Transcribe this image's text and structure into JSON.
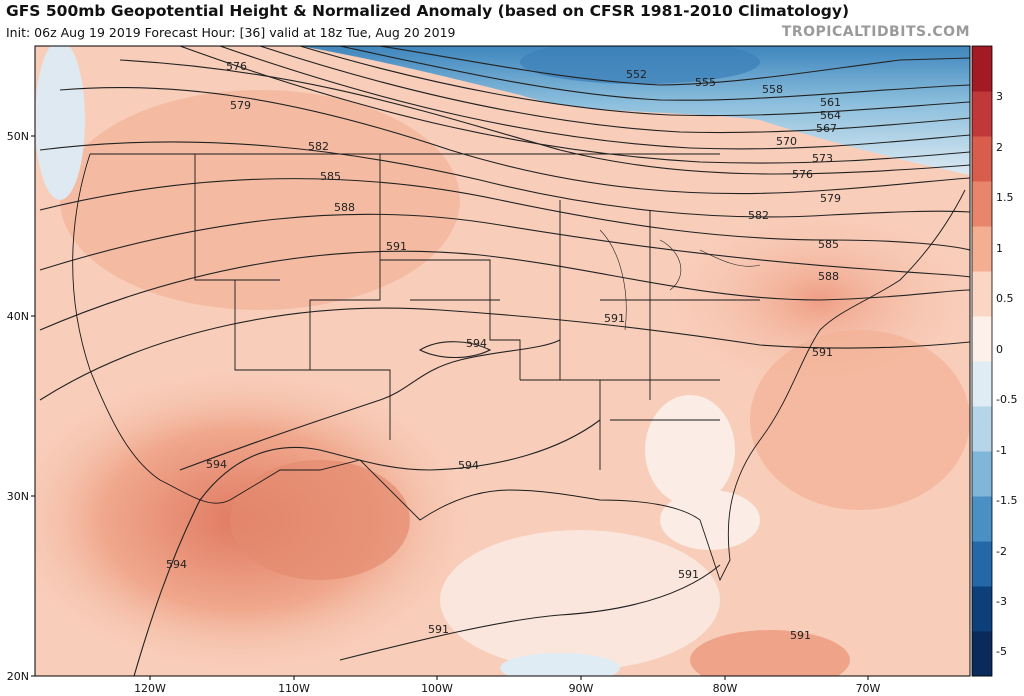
{
  "title": "GFS 500mb Geopotential Height & Normalized Anomaly (based on CFSR 1981-2010 Climatology)",
  "subtitle": "Init: 06z Aug 19 2019   Forecast Hour: [36]   valid at 18z Tue, Aug 20 2019",
  "credit": "TROPICALTIDBITS.COM",
  "lat_labels": [
    "50N",
    "40N",
    "30N",
    "20N"
  ],
  "lon_labels": [
    "120W",
    "110W",
    "100W",
    "90W",
    "80W",
    "70W"
  ],
  "colorbar": {
    "labels": [
      "3",
      "2",
      "1.5",
      "1",
      "0.5",
      "0",
      "-0.5",
      "-1",
      "-1.5",
      "-2",
      "-3",
      "-5"
    ],
    "colors": [
      "#a11a24",
      "#c0383a",
      "#d95d4d",
      "#e8866c",
      "#f4ae92",
      "#fbd6c5",
      "#fdf0ea",
      "#dfecf4",
      "#b6d5e8",
      "#80b6d8",
      "#4a90c4",
      "#2468a8",
      "#0d3f7a",
      "#0a2a5c"
    ]
  },
  "contour_labels": {
    "552": "552",
    "555": "555",
    "558": "558",
    "561": "561",
    "564": "564",
    "567": "567",
    "570": "570",
    "573": "573",
    "576": "576",
    "579": "579",
    "582": "582",
    "585": "585",
    "588": "588",
    "591": "591",
    "594": "594"
  }
}
